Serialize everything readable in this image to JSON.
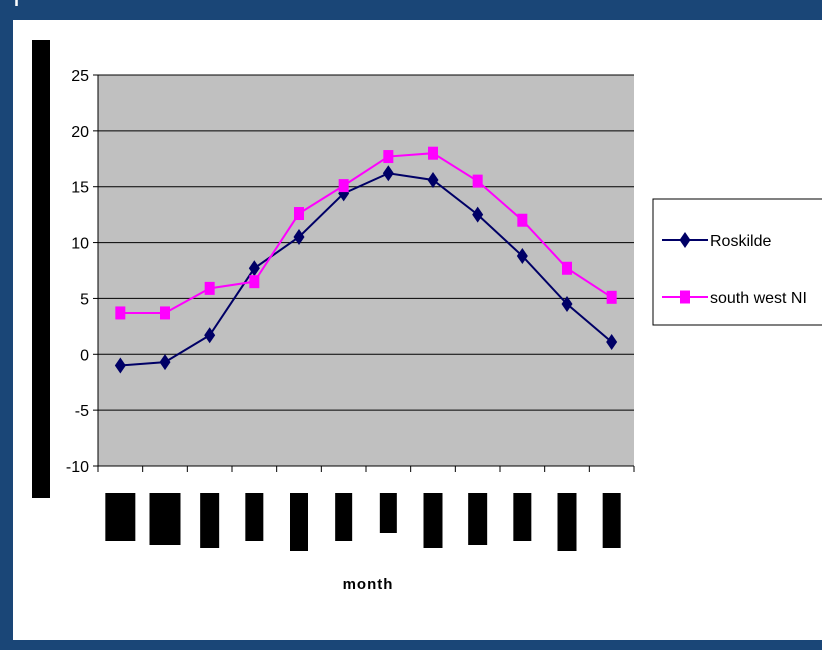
{
  "frame": {
    "top_text": "ııı"
  },
  "chart_data": {
    "type": "line",
    "title": "",
    "xlabel": "month",
    "ylabel": "",
    "ylim": [
      -10,
      25
    ],
    "yticks": [
      -10,
      -5,
      0,
      5,
      10,
      15,
      20,
      25
    ],
    "categories": [
      "",
      "",
      "",
      "",
      "",
      "",
      "",
      "",
      "",
      "",
      "",
      ""
    ],
    "grid": true,
    "legend_position": "right",
    "plot_background": "#c0c0c0",
    "series": [
      {
        "name": "Roskilde",
        "color": "#000066",
        "marker": "diamond",
        "values": [
          -1.0,
          -0.7,
          1.7,
          7.7,
          10.5,
          14.4,
          16.2,
          15.6,
          12.5,
          8.8,
          4.5,
          1.1
        ]
      },
      {
        "name": "south west NI",
        "color": "#ff00ff",
        "marker": "square",
        "values": [
          3.7,
          3.7,
          5.9,
          6.5,
          12.6,
          15.1,
          17.7,
          18.0,
          15.5,
          12.0,
          7.7,
          5.1
        ]
      }
    ]
  }
}
